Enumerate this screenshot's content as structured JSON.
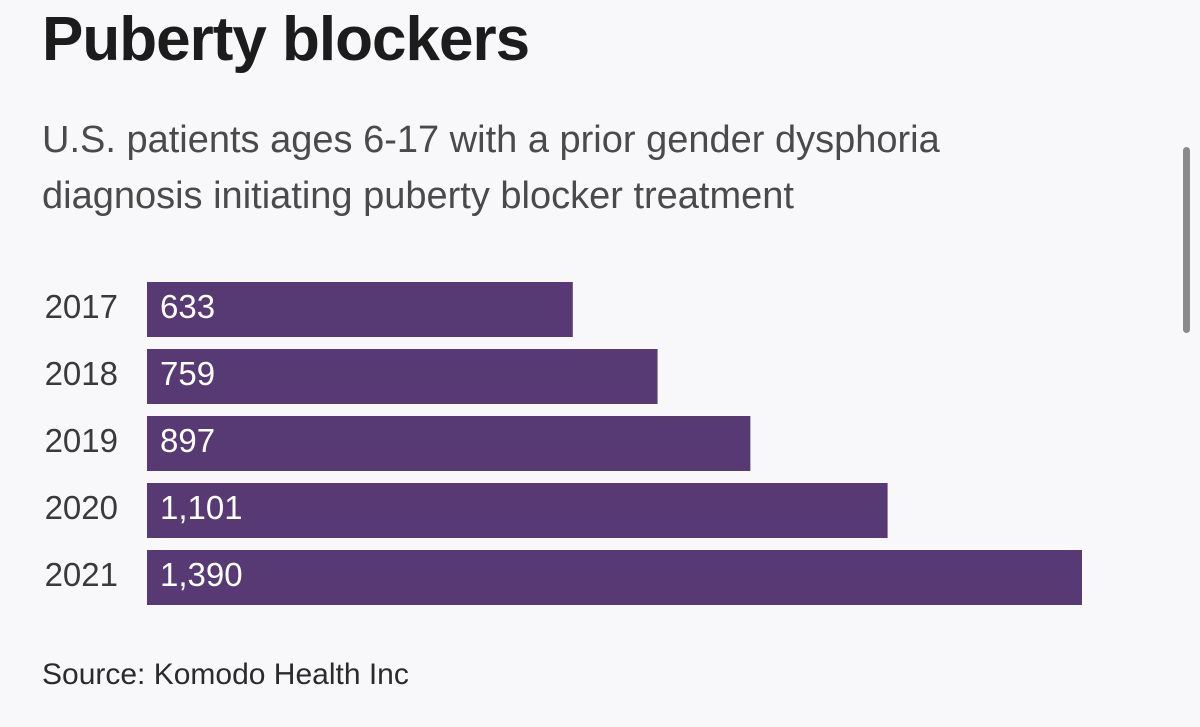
{
  "chart_data": {
    "type": "bar",
    "orientation": "horizontal",
    "title": "Puberty blockers",
    "subtitle": "U.S. patients ages 6-17 with a prior gender dysphoria diagnosis initiating puberty blocker treatment",
    "categories": [
      "2017",
      "2018",
      "2019",
      "2020",
      "2021"
    ],
    "values": [
      633,
      759,
      897,
      1101,
      1390
    ],
    "value_labels": [
      "633",
      "759",
      "897",
      "1,101",
      "1,390"
    ],
    "bar_color": "#573a74",
    "label_color": "#ffffff",
    "xlim": [
      0,
      1390
    ],
    "grid": false,
    "source": "Source: Komodo Health Inc"
  }
}
